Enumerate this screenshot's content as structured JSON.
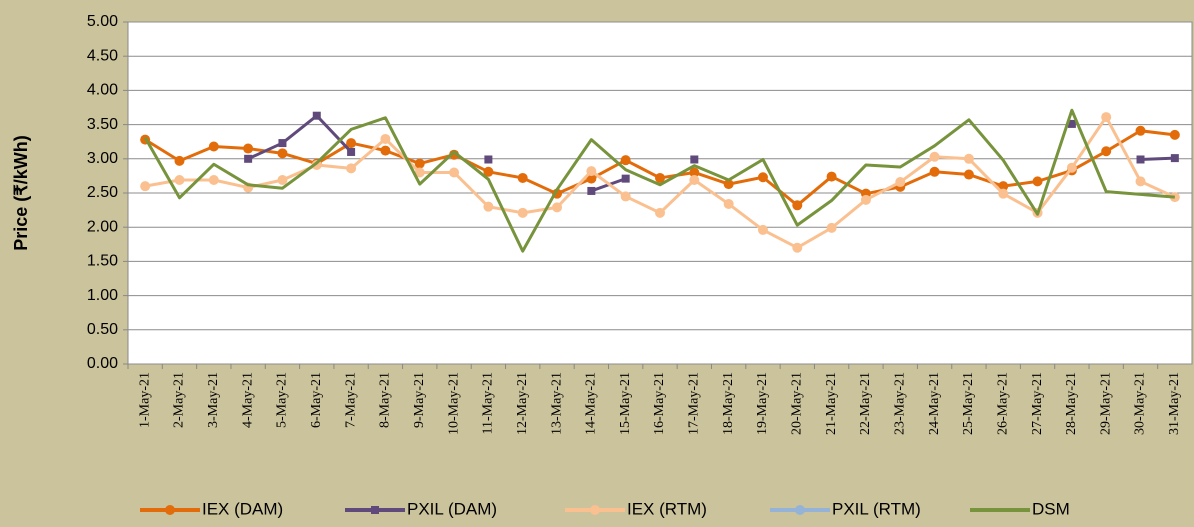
{
  "chart_data": {
    "type": "line",
    "y_label": "Price (₹/kWh)",
    "categories": [
      "1-May-21",
      "2-May-21",
      "3-May-21",
      "4-May-21",
      "5-May-21",
      "6-May-21",
      "7-May-21",
      "8-May-21",
      "9-May-21",
      "10-May-21",
      "11-May-21",
      "12-May-21",
      "13-May-21",
      "14-May-21",
      "15-May-21",
      "16-May-21",
      "17-May-21",
      "18-May-21",
      "19-May-21",
      "20-May-21",
      "21-May-21",
      "22-May-21",
      "23-May-21",
      "24-May-21",
      "25-May-21",
      "26-May-21",
      "27-May-21",
      "28-May-21",
      "29-May-21",
      "30-May-21",
      "31-May-21"
    ],
    "series": [
      {
        "name": "IEX (DAM)",
        "color": "#e36c0a",
        "marker": "circle",
        "values": [
          3.28,
          2.97,
          3.18,
          3.15,
          3.08,
          2.93,
          3.23,
          3.12,
          2.93,
          3.06,
          2.81,
          2.72,
          2.49,
          2.71,
          2.98,
          2.72,
          2.8,
          2.63,
          2.73,
          2.32,
          2.74,
          2.49,
          2.59,
          2.81,
          2.77,
          2.6,
          2.67,
          2.83,
          3.11,
          3.41,
          3.35
        ]
      },
      {
        "name": "PXIL (DAM)",
        "color": "#604a7b",
        "marker": "square",
        "values": [
          null,
          null,
          null,
          3.0,
          3.23,
          3.63,
          3.1,
          null,
          null,
          null,
          2.99,
          null,
          null,
          2.53,
          2.71,
          null,
          2.99,
          null,
          null,
          null,
          null,
          null,
          null,
          null,
          null,
          null,
          null,
          3.51,
          null,
          2.99,
          3.01
        ]
      },
      {
        "name": "IEX (RTM)",
        "color": "#fac090",
        "marker": "circle",
        "values": [
          2.6,
          2.69,
          2.69,
          2.58,
          2.69,
          2.91,
          2.86,
          3.29,
          2.8,
          2.8,
          2.3,
          2.21,
          2.29,
          2.82,
          2.45,
          2.21,
          2.69,
          2.34,
          1.96,
          1.7,
          1.99,
          2.4,
          2.66,
          3.03,
          3.0,
          2.49,
          2.21,
          2.87,
          3.61,
          2.67,
          2.44
        ]
      },
      {
        "name": "PXIL (RTM)",
        "color": "#95b3d7",
        "marker": "circle",
        "values": [
          null,
          null,
          null,
          null,
          null,
          null,
          null,
          null,
          null,
          null,
          null,
          null,
          null,
          null,
          null,
          null,
          null,
          null,
          null,
          null,
          null,
          null,
          null,
          null,
          null,
          null,
          null,
          null,
          null,
          null,
          null
        ]
      },
      {
        "name": "DSM",
        "color": "#77933c",
        "marker": "none",
        "values": [
          3.31,
          2.43,
          2.92,
          2.62,
          2.57,
          2.94,
          3.43,
          3.6,
          2.63,
          3.1,
          2.7,
          1.65,
          2.55,
          3.28,
          2.84,
          2.62,
          2.9,
          2.69,
          2.99,
          2.03,
          2.39,
          2.91,
          2.88,
          3.19,
          3.57,
          2.98,
          2.19,
          3.71,
          2.52,
          2.48,
          2.44
        ]
      }
    ],
    "ylim": [
      0,
      5
    ],
    "yticks": [
      {
        "value": 0,
        "label": "0.00"
      },
      {
        "value": 0.5,
        "label": "0.50"
      },
      {
        "value": 1,
        "label": "1.00"
      },
      {
        "value": 1.5,
        "label": "1.50"
      },
      {
        "value": 2,
        "label": "2.00"
      },
      {
        "value": 2.5,
        "label": "2.50"
      },
      {
        "value": 3,
        "label": "3.00"
      },
      {
        "value": 3.5,
        "label": "3.50"
      },
      {
        "value": 4,
        "label": "4.00"
      },
      {
        "value": 4.5,
        "label": "4.50"
      },
      {
        "value": 5,
        "label": "5.00"
      }
    ],
    "grid": true,
    "legend": "bottom"
  }
}
